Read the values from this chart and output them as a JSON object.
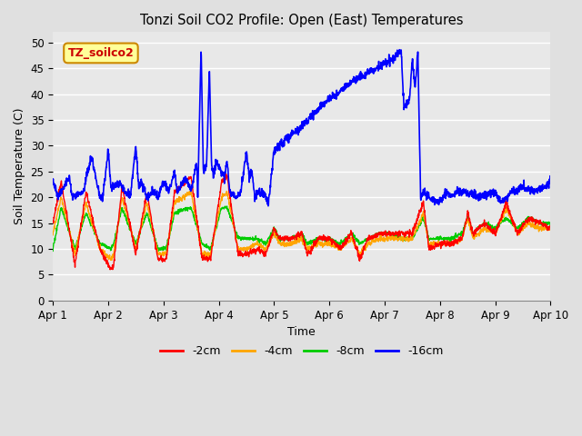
{
  "title": "Tonzi Soil CO2 Profile: Open (East) Temperatures",
  "ylabel": "Soil Temperature (C)",
  "xlabel": "Time",
  "ylim": [
    0,
    52
  ],
  "yticks": [
    0,
    5,
    10,
    15,
    20,
    25,
    30,
    35,
    40,
    45,
    50
  ],
  "xtick_labels": [
    "Apr 1",
    "Apr 2",
    "Apr 3",
    "Apr 4",
    "Apr 5",
    "Apr 6",
    "Apr 7",
    "Apr 8",
    "Apr 9",
    "Apr 10"
  ],
  "colors": {
    "2cm": "#ff0000",
    "4cm": "#ffa500",
    "8cm": "#00cc00",
    "16cm": "#0000ff"
  },
  "legend_labels": [
    "-2cm",
    "-4cm",
    "-8cm",
    "-16cm"
  ],
  "fig_facecolor": "#e0e0e0",
  "ax_facecolor": "#e8e8e8",
  "annotation_text": "TZ_soilco2",
  "annotation_bg": "#ffff99",
  "annotation_border": "#cc8800"
}
